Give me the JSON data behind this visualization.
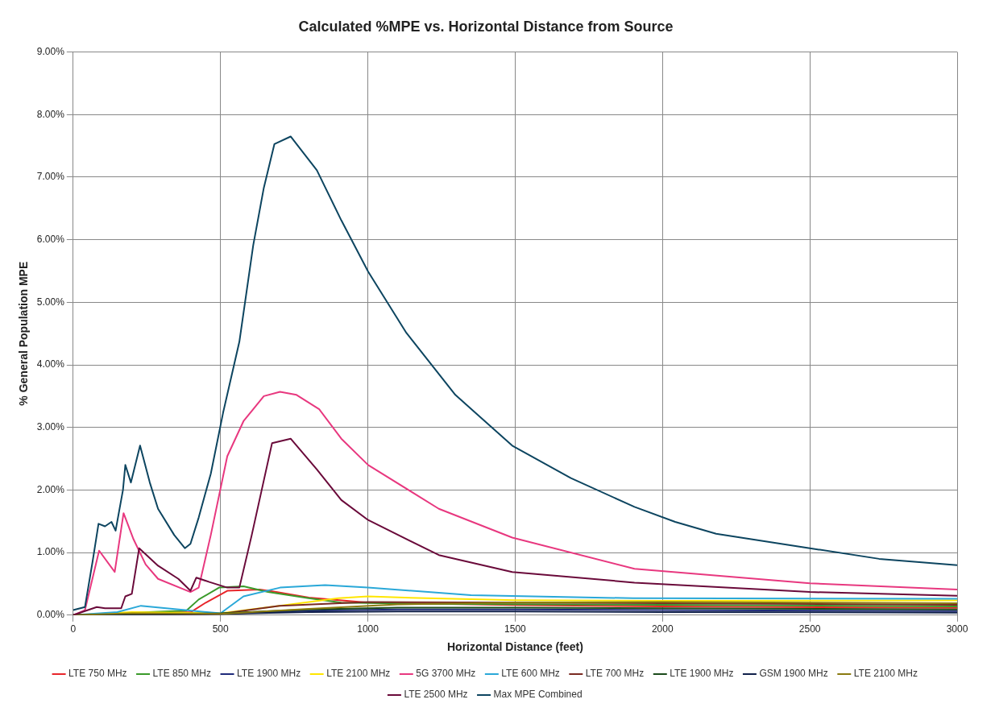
{
  "chart_data": {
    "type": "line",
    "title": "Calculated %MPE vs. Horizontal Distance from Source",
    "xlabel": "Horizontal Distance (feet)",
    "ylabel": "% General Population MPE",
    "xlim": [
      0,
      3000
    ],
    "xticks": [
      0,
      500,
      1000,
      1500,
      2000,
      2500,
      3000
    ],
    "ylim": [
      0,
      9
    ],
    "yticks": [
      {
        "value": 0,
        "label": "0.00%"
      },
      {
        "value": 1,
        "label": "1.00%"
      },
      {
        "value": 2,
        "label": "2.00%"
      },
      {
        "value": 3,
        "label": "3.00%"
      },
      {
        "value": 4,
        "label": "4.00%"
      },
      {
        "value": 5,
        "label": "5.00%"
      },
      {
        "value": 6,
        "label": "6.00%"
      },
      {
        "value": 7,
        "label": "7.00%"
      },
      {
        "value": 8,
        "label": "8.00%"
      },
      {
        "value": 9,
        "label": "9.00%"
      }
    ],
    "grid": true,
    "legend": "bottom",
    "series": [
      {
        "name": "LTE 750 MHz",
        "color": "#e8252a",
        "x": [
          0,
          200,
          400,
          450,
          523,
          633,
          689,
          800,
          1000,
          1500,
          2000,
          3000
        ],
        "values": [
          0,
          0.03,
          0.05,
          0.2,
          0.39,
          0.41,
          0.37,
          0.28,
          0.2,
          0.16,
          0.14,
          0.115
        ]
      },
      {
        "name": "LTE 850 MHz",
        "color": "#3a9a2a",
        "x": [
          0,
          200,
          384,
          426,
          495,
          578,
          661,
          799,
          910,
          1200,
          2000,
          3000
        ],
        "values": [
          0,
          0.04,
          0.07,
          0.25,
          0.44,
          0.46,
          0.37,
          0.27,
          0.2,
          0.18,
          0.165,
          0.14
        ]
      },
      {
        "name": "LTE 1900 MHz",
        "color": "#1f2a7a",
        "x": [
          0,
          300,
          500,
          800,
          1100,
          1500,
          2000,
          3000
        ],
        "values": [
          0,
          0.01,
          0.02,
          0.07,
          0.09,
          0.09,
          0.08,
          0.065
        ]
      },
      {
        "name": "LTE 2100 MHz",
        "color": "#ffe600",
        "x": [
          0,
          200,
          500,
          700,
          900,
          1000,
          1200,
          1500,
          2000,
          3000
        ],
        "values": [
          0,
          0.05,
          0.03,
          0.15,
          0.27,
          0.3,
          0.27,
          0.24,
          0.23,
          0.235
        ]
      },
      {
        "name": "5G 3700 MHz",
        "color": "#e8387f",
        "x": [
          0,
          40,
          88,
          141,
          171,
          205,
          246,
          288,
          398,
          426,
          467,
          523,
          578,
          647,
          702,
          758,
          835,
          910,
          1001,
          1241,
          1490,
          1905,
          2500,
          3000
        ],
        "values": [
          0,
          0.08,
          1.03,
          0.69,
          1.63,
          1.21,
          0.81,
          0.58,
          0.37,
          0.44,
          1.28,
          2.54,
          3.1,
          3.5,
          3.57,
          3.52,
          3.29,
          2.82,
          2.4,
          1.7,
          1.24,
          0.74,
          0.51,
          0.41
        ]
      },
      {
        "name": "LTE 600 MHz",
        "color": "#2aa8d8",
        "x": [
          0,
          150,
          230,
          380,
          500,
          578,
          702,
          855,
          1000,
          1350,
          1900,
          3000
        ],
        "values": [
          0,
          0.05,
          0.15,
          0.08,
          0.03,
          0.3,
          0.44,
          0.48,
          0.44,
          0.32,
          0.27,
          0.26
        ]
      },
      {
        "name": "LTE 700 MHz",
        "color": "#7a2a22",
        "x": [
          0,
          500,
          700,
          1000,
          1500,
          2000,
          3000
        ],
        "values": [
          0,
          0.02,
          0.15,
          0.21,
          0.2,
          0.19,
          0.165
        ]
      },
      {
        "name": "LTE 1900 MHz",
        "color": "#1a4a1a",
        "x": [
          0,
          300,
          500,
          800,
          1100,
          1500,
          2000,
          3000
        ],
        "values": [
          0,
          0.02,
          0.03,
          0.09,
          0.12,
          0.12,
          0.11,
          0.09
        ]
      },
      {
        "name": "GSM 1900 MHz",
        "color": "#10204a",
        "x": [
          0,
          300,
          500,
          800,
          1100,
          1500,
          2000,
          3000
        ],
        "values": [
          0,
          0.01,
          0.02,
          0.05,
          0.06,
          0.06,
          0.05,
          0.04
        ]
      },
      {
        "name": "LTE 2100 MHz",
        "color": "#8a7a10",
        "x": [
          0,
          200,
          500,
          800,
          1100,
          1500,
          2000,
          3000
        ],
        "values": [
          0,
          0.03,
          0.02,
          0.1,
          0.17,
          0.2,
          0.21,
          0.19
        ]
      },
      {
        "name": "LTE 2500 MHz",
        "color": "#6a0a3a",
        "x": [
          0,
          80,
          108,
          163,
          177,
          199,
          224,
          288,
          357,
          398,
          418,
          462,
          523,
          564,
          606,
          675,
          738,
          827,
          910,
          1001,
          1241,
          1490,
          1905,
          2500,
          3000
        ],
        "values": [
          0,
          0.13,
          0.11,
          0.11,
          0.3,
          0.34,
          1.07,
          0.79,
          0.58,
          0.39,
          0.6,
          0.53,
          0.44,
          0.44,
          1.28,
          2.75,
          2.82,
          2.33,
          1.84,
          1.52,
          0.96,
          0.69,
          0.52,
          0.37,
          0.31
        ]
      },
      {
        "name": "Max MPE Combined",
        "color": "#0d4560",
        "x": [
          0,
          40,
          66,
          86,
          108,
          130,
          144,
          169,
          177,
          196,
          227,
          260,
          288,
          343,
          379,
          398,
          426,
          467,
          509,
          564,
          611,
          647,
          683,
          738,
          827,
          910,
          1001,
          1131,
          1297,
          1490,
          1689,
          1905,
          2043,
          2182,
          2500,
          2735,
          3000
        ],
        "values": [
          0.08,
          0.13,
          0.86,
          1.46,
          1.42,
          1.49,
          1.35,
          2.0,
          2.4,
          2.12,
          2.71,
          2.12,
          1.7,
          1.28,
          1.07,
          1.14,
          1.56,
          2.26,
          3.24,
          4.37,
          5.91,
          6.83,
          7.53,
          7.65,
          7.11,
          6.31,
          5.49,
          4.51,
          3.52,
          2.71,
          2.19,
          1.73,
          1.49,
          1.3,
          1.07,
          0.9,
          0.8
        ]
      }
    ]
  }
}
